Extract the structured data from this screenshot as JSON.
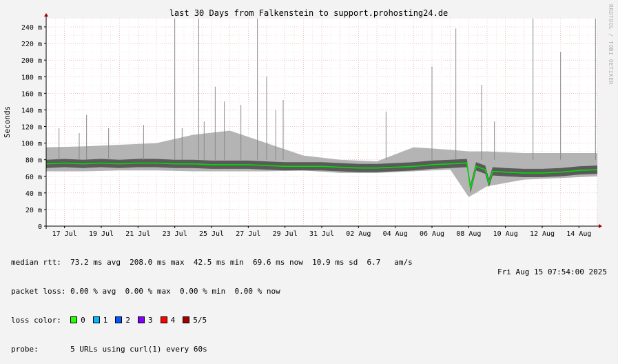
{
  "chart_data": {
    "type": "line",
    "title": "last 30 Days from Falkenstein to support.prohosting24.de",
    "ylabel": "Seconds",
    "ylim_ms": [
      0,
      250
    ],
    "yticks": [
      {
        "v": 0,
        "label": "0"
      },
      {
        "v": 20,
        "label": "20 m"
      },
      {
        "v": 40,
        "label": "40 m"
      },
      {
        "v": 60,
        "label": "60 m"
      },
      {
        "v": 80,
        "label": "80 m"
      },
      {
        "v": 100,
        "label": "100 m"
      },
      {
        "v": 120,
        "label": "120 m"
      },
      {
        "v": 140,
        "label": "140 m"
      },
      {
        "v": 160,
        "label": "160 m"
      },
      {
        "v": 180,
        "label": "180 m"
      },
      {
        "v": 200,
        "label": "200 m"
      },
      {
        "v": 220,
        "label": "220 m"
      },
      {
        "v": 240,
        "label": "240 m"
      }
    ],
    "xlim_days": [
      "Jul 16",
      "Aug 15"
    ],
    "xticks": [
      {
        "label": "17 Jul",
        "day": 1
      },
      {
        "label": "19 Jul",
        "day": 3
      },
      {
        "label": "21 Jul",
        "day": 5
      },
      {
        "label": "23 Jul",
        "day": 7
      },
      {
        "label": "25 Jul",
        "day": 9
      },
      {
        "label": "27 Jul",
        "day": 11
      },
      {
        "label": "29 Jul",
        "day": 13
      },
      {
        "label": "31 Jul",
        "day": 15
      },
      {
        "label": "02 Aug",
        "day": 17
      },
      {
        "label": "04 Aug",
        "day": 19
      },
      {
        "label": "06 Aug",
        "day": 21
      },
      {
        "label": "08 Aug",
        "day": 23
      },
      {
        "label": "10 Aug",
        "day": 25
      },
      {
        "label": "12 Aug",
        "day": 27
      },
      {
        "label": "14 Aug",
        "day": 29
      }
    ],
    "median_series": {
      "name": "median rtt",
      "color": "#00dd00",
      "points": [
        {
          "day": 0,
          "ms": 75
        },
        {
          "day": 1,
          "ms": 76
        },
        {
          "day": 2,
          "ms": 75
        },
        {
          "day": 3,
          "ms": 76
        },
        {
          "day": 4,
          "ms": 75
        },
        {
          "day": 5,
          "ms": 76
        },
        {
          "day": 6,
          "ms": 76
        },
        {
          "day": 7,
          "ms": 75
        },
        {
          "day": 8,
          "ms": 75
        },
        {
          "day": 9,
          "ms": 74
        },
        {
          "day": 10,
          "ms": 74
        },
        {
          "day": 11,
          "ms": 74
        },
        {
          "day": 12,
          "ms": 73
        },
        {
          "day": 13,
          "ms": 72
        },
        {
          "day": 14,
          "ms": 72
        },
        {
          "day": 15,
          "ms": 72
        },
        {
          "day": 16,
          "ms": 71
        },
        {
          "day": 17,
          "ms": 70
        },
        {
          "day": 18,
          "ms": 70
        },
        {
          "day": 19,
          "ms": 71
        },
        {
          "day": 20,
          "ms": 72
        },
        {
          "day": 21,
          "ms": 74
        },
        {
          "day": 22,
          "ms": 75
        },
        {
          "day": 22.9,
          "ms": 76
        },
        {
          "day": 23.1,
          "ms": 45
        },
        {
          "day": 23.4,
          "ms": 72
        },
        {
          "day": 23.9,
          "ms": 68
        },
        {
          "day": 24.1,
          "ms": 52
        },
        {
          "day": 24.3,
          "ms": 66
        },
        {
          "day": 25,
          "ms": 65
        },
        {
          "day": 26,
          "ms": 64
        },
        {
          "day": 27,
          "ms": 64
        },
        {
          "day": 28,
          "ms": 65
        },
        {
          "day": 29,
          "ms": 67
        },
        {
          "day": 30,
          "ms": 68
        }
      ]
    },
    "spread_band": [
      {
        "day": 0,
        "lo": 66,
        "hi": 95
      },
      {
        "day": 2,
        "lo": 66,
        "hi": 96
      },
      {
        "day": 4,
        "lo": 67,
        "hi": 98
      },
      {
        "day": 6,
        "lo": 67,
        "hi": 100
      },
      {
        "day": 8,
        "lo": 66,
        "hi": 110
      },
      {
        "day": 10,
        "lo": 66,
        "hi": 115
      },
      {
        "day": 12,
        "lo": 66,
        "hi": 100
      },
      {
        "day": 14,
        "lo": 67,
        "hi": 85
      },
      {
        "day": 16,
        "lo": 64,
        "hi": 80
      },
      {
        "day": 18,
        "lo": 64,
        "hi": 78
      },
      {
        "day": 20,
        "lo": 66,
        "hi": 95
      },
      {
        "day": 22,
        "lo": 68,
        "hi": 92
      },
      {
        "day": 23,
        "lo": 35,
        "hi": 90
      },
      {
        "day": 24,
        "lo": 48,
        "hi": 90
      },
      {
        "day": 26,
        "lo": 56,
        "hi": 88
      },
      {
        "day": 28,
        "lo": 58,
        "hi": 88
      },
      {
        "day": 30,
        "lo": 60,
        "hi": 88
      }
    ],
    "spikes": [
      {
        "day": 0.7,
        "ms": 118
      },
      {
        "day": 1.8,
        "ms": 112
      },
      {
        "day": 2.2,
        "ms": 134
      },
      {
        "day": 3.4,
        "ms": 118
      },
      {
        "day": 5.3,
        "ms": 122
      },
      {
        "day": 7.0,
        "ms": 250
      },
      {
        "day": 7.4,
        "ms": 118
      },
      {
        "day": 8.3,
        "ms": 250
      },
      {
        "day": 8.6,
        "ms": 126
      },
      {
        "day": 9.2,
        "ms": 168
      },
      {
        "day": 9.7,
        "ms": 150
      },
      {
        "day": 10.6,
        "ms": 146
      },
      {
        "day": 11.5,
        "ms": 250
      },
      {
        "day": 12.0,
        "ms": 180
      },
      {
        "day": 12.5,
        "ms": 140
      },
      {
        "day": 12.9,
        "ms": 152
      },
      {
        "day": 18.5,
        "ms": 138
      },
      {
        "day": 21.0,
        "ms": 192
      },
      {
        "day": 22.3,
        "ms": 238
      },
      {
        "day": 23.7,
        "ms": 170
      },
      {
        "day": 24.4,
        "ms": 126
      },
      {
        "day": 26.5,
        "ms": 250
      },
      {
        "day": 28.0,
        "ms": 210
      },
      {
        "day": 29.9,
        "ms": 250
      }
    ]
  },
  "stats": {
    "median_rtt": "median rtt:  73.2 ms avg  208.0 ms max  42.5 ms min  69.6 ms now  10.9 ms sd  6.7   am/s",
    "packet_loss": "packet loss: 0.00 % avg  0.00 % max  0.00 % min  0.00 % now"
  },
  "loss_color": {
    "label": "loss color:",
    "items": [
      {
        "label": "0",
        "color": "#26ff00"
      },
      {
        "label": "1",
        "color": "#00b8ff"
      },
      {
        "label": "2",
        "color": "#0059ff"
      },
      {
        "label": "3",
        "color": "#7e00ff"
      },
      {
        "label": "4",
        "color": "#ff0000"
      },
      {
        "label": "5/5",
        "color": "#a10000"
      }
    ]
  },
  "probe": {
    "text": "probe:       5 URLs using curl(1) every 60s",
    "time": "Fri Aug 15 07:54:00 2025"
  },
  "side_label": "RRDTOOL / TOBI OETIKER"
}
